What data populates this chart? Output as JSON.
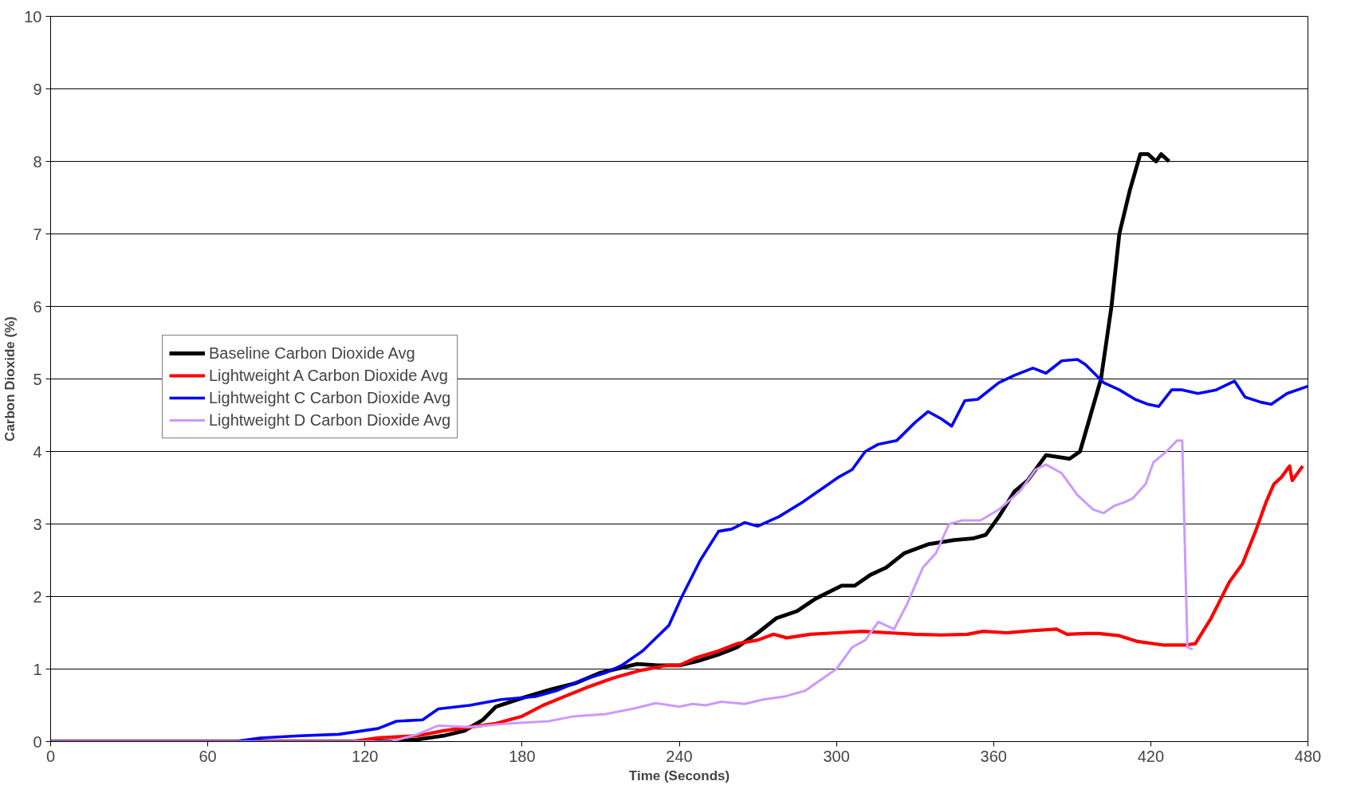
{
  "chart_data": {
    "type": "line",
    "xlabel": "Time (Seconds)",
    "ylabel": "Carbon Dioxide (%)",
    "xlim": [
      0,
      480
    ],
    "ylim": [
      0,
      10
    ],
    "xticks": [
      0,
      60,
      120,
      180,
      240,
      300,
      360,
      420,
      480
    ],
    "yticks": [
      0,
      1,
      2,
      3,
      4,
      5,
      6,
      7,
      8,
      9,
      10
    ],
    "grid": "y",
    "legend": "left",
    "marker": "none",
    "line_style": "solid",
    "series": [
      {
        "name": "Baseline Carbon Dioxide Avg",
        "color": "#000000",
        "x": [
          0,
          130,
          140,
          150,
          158,
          165,
          170,
          180,
          191,
          200,
          210,
          224,
          232,
          240,
          248,
          255,
          262,
          270,
          277,
          285,
          292,
          302,
          307,
          313,
          319,
          326,
          335,
          345,
          352,
          357,
          362,
          368,
          373,
          380,
          389,
          393,
          397,
          401,
          405,
          408,
          412,
          416,
          419,
          422,
          424,
          427
        ],
        "values": [
          0,
          0,
          0.03,
          0.08,
          0.15,
          0.3,
          0.48,
          0.6,
          0.72,
          0.8,
          0.95,
          1.07,
          1.05,
          1.05,
          1.12,
          1.2,
          1.3,
          1.5,
          1.7,
          1.8,
          1.97,
          2.15,
          2.15,
          2.3,
          2.4,
          2.6,
          2.72,
          2.78,
          2.8,
          2.85,
          3.1,
          3.45,
          3.6,
          3.95,
          3.9,
          4.0,
          4.5,
          5.0,
          6.0,
          7.0,
          7.6,
          8.1,
          8.1,
          8.0,
          8.1,
          8.0
        ]
      },
      {
        "name": "Lightweight A Carbon Dioxide Avg",
        "color": "#ff0000",
        "x": [
          0,
          115,
          125,
          140,
          150,
          160,
          170,
          180,
          188,
          196,
          205,
          215,
          225,
          235,
          240,
          246,
          255,
          262,
          270,
          276,
          281,
          290,
          300,
          310,
          320,
          330,
          340,
          350,
          356,
          365,
          375,
          384,
          388,
          395,
          400,
          408,
          415,
          425,
          433,
          437,
          443,
          450,
          455,
          460,
          464,
          467,
          470,
          473,
          474,
          478
        ],
        "values": [
          0,
          0,
          0.05,
          0.08,
          0.15,
          0.2,
          0.25,
          0.35,
          0.5,
          0.62,
          0.75,
          0.88,
          0.98,
          1.05,
          1.05,
          1.15,
          1.25,
          1.35,
          1.4,
          1.48,
          1.43,
          1.48,
          1.5,
          1.52,
          1.5,
          1.48,
          1.47,
          1.48,
          1.52,
          1.5,
          1.53,
          1.55,
          1.48,
          1.49,
          1.49,
          1.46,
          1.38,
          1.33,
          1.33,
          1.35,
          1.7,
          2.2,
          2.45,
          2.9,
          3.3,
          3.55,
          3.65,
          3.8,
          3.6,
          3.8
        ]
      },
      {
        "name": "Lightweight C Carbon Dioxide Avg",
        "color": "#0000ff",
        "x": [
          0,
          70,
          80,
          95,
          110,
          125,
          132,
          142,
          148,
          160,
          172,
          185,
          193,
          203,
          212,
          218,
          226,
          236,
          241,
          248,
          255,
          260,
          265,
          270,
          278,
          287,
          295,
          301,
          306,
          311,
          316,
          323,
          330,
          335,
          340,
          344,
          349,
          354,
          362,
          368,
          375,
          380,
          386,
          392,
          395,
          402,
          408,
          414,
          419,
          423,
          428,
          432,
          438,
          445,
          452,
          456,
          462,
          466,
          472,
          480
        ],
        "values": [
          0,
          0,
          0.05,
          0.08,
          0.1,
          0.18,
          0.28,
          0.3,
          0.45,
          0.5,
          0.58,
          0.62,
          0.7,
          0.85,
          0.95,
          1.05,
          1.25,
          1.6,
          2.0,
          2.5,
          2.9,
          2.93,
          3.02,
          2.97,
          3.1,
          3.3,
          3.5,
          3.65,
          3.75,
          4.0,
          4.1,
          4.15,
          4.4,
          4.55,
          4.45,
          4.35,
          4.7,
          4.72,
          4.95,
          5.05,
          5.15,
          5.08,
          5.25,
          5.27,
          5.2,
          4.95,
          4.85,
          4.72,
          4.65,
          4.62,
          4.85,
          4.85,
          4.8,
          4.85,
          4.97,
          4.75,
          4.68,
          4.65,
          4.8,
          4.9
        ]
      },
      {
        "name": "Lightweight D Carbon Dioxide Avg",
        "color": "#cc99ff",
        "x": [
          0,
          130,
          140,
          148,
          160,
          175,
          190,
          200,
          212,
          222,
          231,
          240,
          245,
          250,
          256,
          265,
          272,
          280,
          288,
          296,
          300,
          306,
          311,
          316,
          322,
          327,
          333,
          338,
          343,
          348,
          355,
          362,
          370,
          376,
          380,
          386,
          392,
          398,
          402,
          406,
          410,
          413,
          418,
          421,
          426,
          430,
          432,
          434,
          436
        ],
        "values": [
          0,
          0,
          0.1,
          0.22,
          0.2,
          0.25,
          0.28,
          0.35,
          0.38,
          0.45,
          0.53,
          0.48,
          0.52,
          0.5,
          0.55,
          0.52,
          0.58,
          0.62,
          0.7,
          0.9,
          1.0,
          1.3,
          1.4,
          1.65,
          1.55,
          1.9,
          2.4,
          2.6,
          3.0,
          3.05,
          3.05,
          3.2,
          3.45,
          3.75,
          3.82,
          3.7,
          3.4,
          3.2,
          3.15,
          3.25,
          3.3,
          3.35,
          3.55,
          3.85,
          4.0,
          4.15,
          4.15,
          1.3,
          1.27
        ]
      }
    ]
  }
}
